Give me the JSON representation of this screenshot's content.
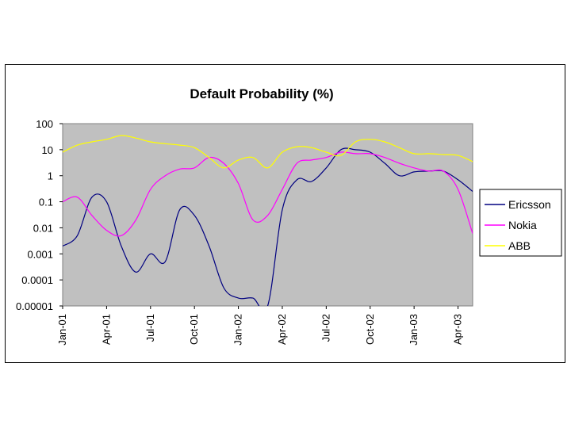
{
  "chart_data": {
    "type": "line",
    "title": "Default Probability (%)",
    "xlabel": "",
    "ylabel": "",
    "y_scale": "log",
    "ylim": [
      1e-05,
      100
    ],
    "y_ticks": [
      "100",
      "10",
      "1",
      "0.1",
      "0.01",
      "0.001",
      "0.0001",
      "0.00001"
    ],
    "x_tick_labels": [
      "Jan-01",
      "Apr-01",
      "Jul-01",
      "Oct-01",
      "Jan-02",
      "Apr-02",
      "Jul-02",
      "Oct-02",
      "Jan-03",
      "Apr-03"
    ],
    "xlim": [
      "2001-01",
      "2003-05"
    ],
    "x": [
      "2001-01",
      "2001-02",
      "2001-03",
      "2001-04",
      "2001-05",
      "2001-06",
      "2001-07",
      "2001-08",
      "2001-09",
      "2001-10",
      "2001-11",
      "2001-12",
      "2002-01",
      "2002-02",
      "2002-03",
      "2002-04",
      "2002-05",
      "2002-06",
      "2002-07",
      "2002-08",
      "2002-09",
      "2002-10",
      "2002-11",
      "2002-12",
      "2003-01",
      "2003-02",
      "2003-03",
      "2003-04",
      "2003-05"
    ],
    "grid": false,
    "plot_background": "#c0c0c0",
    "legend_position": "right",
    "series": [
      {
        "name": "Ericsson",
        "color": "#000080",
        "values": [
          0.002,
          0.005,
          0.15,
          0.1,
          0.002,
          0.0002,
          0.001,
          0.0005,
          0.05,
          0.03,
          0.002,
          5e-05,
          2e-05,
          2e-05,
          1e-05,
          0.05,
          0.7,
          0.6,
          2,
          10,
          10,
          8,
          3,
          1,
          1.4,
          1.5,
          1.5,
          0.7,
          0.25
        ]
      },
      {
        "name": "Nokia",
        "color": "#ff00ff",
        "values": [
          0.1,
          0.15,
          0.03,
          0.008,
          0.005,
          0.02,
          0.3,
          1,
          1.8,
          2,
          5,
          3,
          0.5,
          0.02,
          0.03,
          0.3,
          3,
          4,
          5,
          8,
          7,
          7,
          5,
          3,
          2,
          1.5,
          1.5,
          0.3,
          0.006
        ]
      },
      {
        "name": "ABB",
        "color": "#ffff00",
        "values": [
          8,
          15,
          20,
          25,
          35,
          28,
          20,
          17,
          15,
          12,
          5,
          2,
          4,
          5,
          2,
          8,
          13,
          12,
          8,
          6,
          20,
          25,
          20,
          12,
          7,
          7,
          6.5,
          6,
          3.5
        ]
      }
    ]
  }
}
